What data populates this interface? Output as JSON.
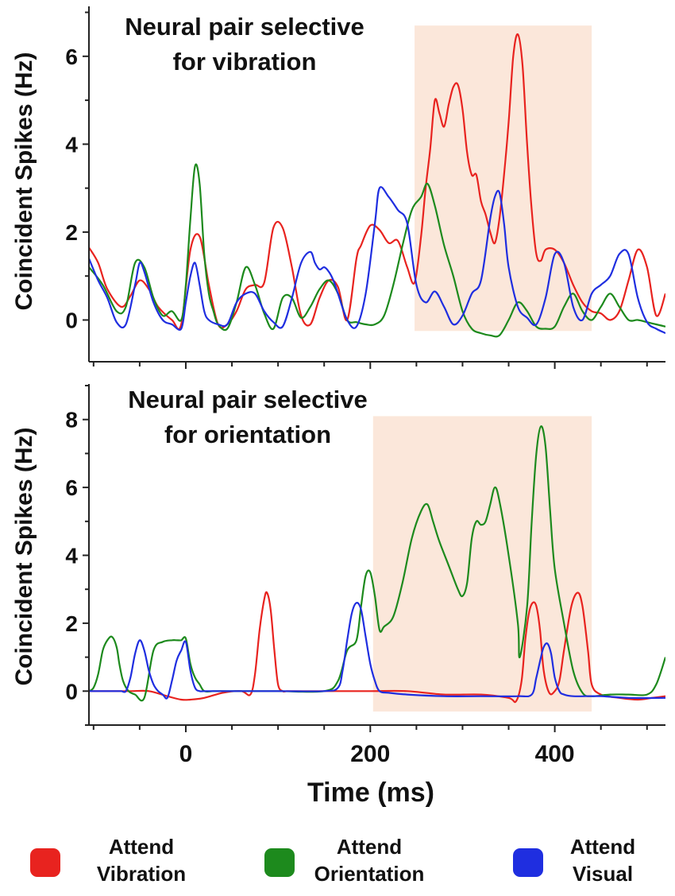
{
  "chart_data": [
    {
      "type": "line",
      "title": "Neural pair selective for vibration",
      "title_lines": [
        "Neural pair selective",
        "for vibration"
      ],
      "ylabel": "Coincident Spikes (Hz)",
      "xlim": [
        -105,
        520
      ],
      "ylim": [
        -0.95,
        7.1
      ],
      "yticks": [
        0,
        2,
        4,
        6
      ],
      "xticks": [
        0,
        200,
        400
      ],
      "highlight": {
        "x": [
          248,
          440
        ],
        "y": [
          -0.25,
          6.7
        ],
        "color": "#fbe7da"
      },
      "series": [
        {
          "name": "Attend Vibration",
          "color": "#e8231f",
          "x": [
            -105,
            -95,
            -85,
            -70,
            -60,
            -50,
            -40,
            -30,
            -15,
            -5,
            5,
            15,
            25,
            35,
            45,
            55,
            65,
            75,
            85,
            95,
            105,
            115,
            125,
            135,
            145,
            155,
            165,
            175,
            185,
            190,
            200,
            210,
            220,
            230,
            240,
            248,
            255,
            260,
            265,
            270,
            275,
            280,
            285,
            290,
            295,
            300,
            305,
            310,
            315,
            320,
            325,
            330,
            335,
            340,
            345,
            350,
            355,
            360,
            365,
            370,
            375,
            380,
            385,
            390,
            400,
            410,
            420,
            430,
            440,
            450,
            460,
            470,
            480,
            490,
            500,
            510,
            520
          ],
          "y": [
            1.65,
            1.3,
            0.7,
            0.3,
            0.55,
            0.9,
            0.7,
            0.3,
            0.0,
            -0.1,
            1.6,
            1.9,
            0.8,
            -0.1,
            -0.1,
            0.2,
            0.7,
            0.8,
            0.85,
            2.1,
            2.1,
            1.2,
            0.1,
            -0.1,
            0.5,
            0.9,
            0.75,
            0.0,
            1.4,
            1.7,
            2.15,
            2.05,
            1.75,
            1.8,
            1.2,
            0.85,
            1.9,
            3.0,
            3.9,
            5.0,
            4.7,
            4.4,
            4.9,
            5.3,
            5.35,
            4.8,
            3.8,
            3.3,
            3.3,
            2.7,
            2.4,
            2.0,
            1.75,
            2.3,
            3.3,
            4.5,
            6.0,
            6.5,
            5.8,
            4.0,
            2.5,
            1.5,
            1.35,
            1.6,
            1.6,
            1.3,
            0.8,
            0.4,
            0.2,
            0.15,
            0.0,
            0.2,
            0.9,
            1.6,
            1.2,
            0.1,
            0.6
          ]
        },
        {
          "name": "Attend Orientation",
          "color": "#1d8a1d",
          "x": [
            -105,
            -90,
            -75,
            -65,
            -55,
            -45,
            -35,
            -25,
            -15,
            -5,
            0,
            5,
            10,
            15,
            20,
            25,
            30,
            35,
            45,
            55,
            65,
            75,
            85,
            95,
            105,
            115,
            125,
            135,
            145,
            155,
            165,
            175,
            185,
            195,
            205,
            215,
            225,
            235,
            245,
            255,
            262,
            270,
            280,
            290,
            300,
            310,
            320,
            330,
            340,
            350,
            360,
            370,
            380,
            390,
            400,
            410,
            420,
            430,
            440,
            450,
            460,
            470,
            480,
            490,
            500,
            510,
            520
          ],
          "y": [
            1.2,
            0.8,
            0.2,
            0.3,
            1.3,
            1.2,
            0.5,
            0.1,
            0.2,
            0.0,
            0.8,
            2.3,
            3.5,
            3.1,
            1.5,
            0.6,
            0.2,
            -0.1,
            -0.2,
            0.4,
            1.2,
            0.8,
            0.15,
            -0.2,
            0.5,
            0.5,
            0.05,
            0.3,
            0.7,
            0.9,
            0.6,
            0.0,
            -0.05,
            -0.1,
            -0.1,
            0.1,
            0.8,
            1.7,
            2.5,
            2.8,
            3.1,
            2.6,
            1.7,
            1.0,
            0.2,
            -0.2,
            -0.3,
            -0.35,
            -0.35,
            0.0,
            0.4,
            0.2,
            -0.15,
            -0.2,
            -0.15,
            0.3,
            0.6,
            0.2,
            0.0,
            0.3,
            0.6,
            0.3,
            0.0,
            0.0,
            -0.05,
            -0.1,
            -0.15
          ]
        },
        {
          "name": "Attend Visual",
          "color": "#1f2ee0",
          "x": [
            -105,
            -95,
            -85,
            -75,
            -65,
            -55,
            -50,
            -45,
            -35,
            -25,
            -15,
            -5,
            0,
            5,
            10,
            15,
            20,
            25,
            35,
            45,
            55,
            65,
            75,
            85,
            95,
            105,
            115,
            125,
            135,
            140,
            145,
            150,
            155,
            160,
            165,
            175,
            185,
            195,
            205,
            210,
            220,
            230,
            240,
            250,
            260,
            270,
            280,
            290,
            300,
            310,
            320,
            330,
            335,
            340,
            345,
            350,
            360,
            370,
            380,
            390,
            400,
            410,
            420,
            430,
            440,
            450,
            460,
            470,
            480,
            490,
            500,
            510,
            520
          ],
          "y": [
            1.4,
            0.9,
            0.5,
            -0.05,
            -0.1,
            0.8,
            1.3,
            1.1,
            0.4,
            0.0,
            -0.1,
            -0.2,
            0.4,
            1.0,
            1.3,
            0.8,
            0.2,
            0.0,
            -0.1,
            -0.1,
            0.4,
            0.6,
            0.6,
            0.2,
            -0.05,
            -0.15,
            0.5,
            1.3,
            1.55,
            1.3,
            1.15,
            1.2,
            1.1,
            0.9,
            0.6,
            0.0,
            -0.15,
            0.6,
            2.2,
            3.0,
            2.8,
            2.5,
            2.2,
            0.8,
            0.4,
            0.65,
            0.3,
            -0.1,
            0.1,
            0.6,
            0.9,
            2.3,
            2.8,
            2.9,
            2.2,
            1.2,
            0.3,
            0.05,
            -0.1,
            0.5,
            1.5,
            1.3,
            0.3,
            0.0,
            0.6,
            0.8,
            1.0,
            1.5,
            1.5,
            0.5,
            -0.05,
            -0.2,
            -0.3
          ]
        }
      ]
    },
    {
      "type": "line",
      "title": "Neural pair selective for orientation",
      "title_lines": [
        "Neural pair selective",
        "for orientation"
      ],
      "ylabel": "Coincident Spikes (Hz)",
      "xlabel": "Time (ms)",
      "xlim": [
        -105,
        520
      ],
      "ylim": [
        -1.0,
        9.0
      ],
      "yticks": [
        0,
        2,
        4,
        6,
        8
      ],
      "xticks": [
        0,
        200,
        400
      ],
      "highlight": {
        "x": [
          203,
          440
        ],
        "y": [
          -0.6,
          8.1
        ],
        "color": "#fbe7da"
      },
      "series": [
        {
          "name": "Attend Vibration",
          "color": "#e8231f",
          "x": [
            -105,
            -80,
            -60,
            -40,
            -20,
            -5,
            5,
            20,
            40,
            60,
            70,
            75,
            80,
            85,
            88,
            92,
            96,
            100,
            105,
            110,
            120,
            140,
            160,
            200,
            240,
            280,
            320,
            350,
            358,
            364,
            368,
            372,
            376,
            380,
            384,
            388,
            394,
            400,
            405,
            410,
            418,
            425,
            430,
            436,
            440,
            450,
            470,
            490,
            505,
            520
          ],
          "y": [
            0,
            0,
            0,
            0,
            -0.15,
            -0.25,
            -0.25,
            -0.2,
            -0.05,
            0,
            -0.1,
            0.5,
            1.8,
            2.7,
            2.9,
            2.4,
            1.2,
            0.2,
            0,
            0,
            0,
            0,
            0,
            0,
            0,
            -0.1,
            -0.1,
            -0.2,
            -0.3,
            0.3,
            1.5,
            2.3,
            2.6,
            2.5,
            1.8,
            0.6,
            -0.05,
            0,
            0.3,
            1.2,
            2.5,
            2.9,
            2.5,
            1.2,
            0.2,
            -0.1,
            -0.2,
            -0.25,
            -0.2,
            -0.15
          ]
        },
        {
          "name": "Attend Orientation",
          "color": "#1d8a1d",
          "x": [
            -105,
            -100,
            -95,
            -90,
            -85,
            -80,
            -75,
            -72,
            -68,
            -62,
            -55,
            -45,
            -35,
            -25,
            -15,
            -10,
            -5,
            0,
            5,
            10,
            15,
            20,
            30,
            40,
            60,
            100,
            150,
            165,
            175,
            185,
            190,
            195,
            200,
            205,
            210,
            215,
            225,
            235,
            245,
            255,
            262,
            268,
            275,
            285,
            295,
            300,
            305,
            310,
            315,
            320,
            325,
            330,
            335,
            340,
            350,
            360,
            362,
            370,
            375,
            380,
            385,
            390,
            395,
            400,
            410,
            420,
            430,
            440,
            460,
            480,
            500,
            510,
            520
          ],
          "y": [
            0,
            0.1,
            0.5,
            1.2,
            1.5,
            1.6,
            1.3,
            0.8,
            0.3,
            0.0,
            -0.1,
            -0.2,
            1.2,
            1.45,
            1.5,
            1.5,
            1.5,
            1.55,
            0.8,
            0.4,
            0.2,
            0.0,
            0,
            0,
            0,
            0,
            0,
            0.3,
            1.2,
            1.5,
            2.5,
            3.4,
            3.5,
            2.8,
            1.8,
            1.9,
            2.2,
            3.2,
            4.5,
            5.3,
            5.5,
            5.0,
            4.4,
            3.7,
            3.0,
            2.8,
            3.2,
            4.5,
            5.0,
            4.9,
            5.0,
            5.5,
            6.0,
            5.6,
            4.0,
            2.0,
            1.0,
            2.5,
            5.0,
            7.0,
            7.8,
            7.2,
            5.3,
            3.6,
            2.0,
            0.6,
            -0.05,
            -0.15,
            -0.1,
            -0.1,
            -0.1,
            0.2,
            1.0
          ]
        },
        {
          "name": "Attend Visual",
          "color": "#1f2ee0",
          "x": [
            -105,
            -80,
            -75,
            -70,
            -65,
            -60,
            -55,
            -50,
            -45,
            -40,
            -35,
            -30,
            -25,
            -20,
            -15,
            -10,
            -5,
            0,
            5,
            10,
            15,
            20,
            40,
            100,
            150,
            165,
            170,
            175,
            180,
            185,
            190,
            195,
            200,
            205,
            210,
            220,
            240,
            280,
            320,
            360,
            375,
            380,
            385,
            388,
            392,
            396,
            400,
            405,
            410,
            420,
            450,
            480,
            520
          ],
          "y": [
            0,
            0,
            0,
            0,
            0,
            0.4,
            1.1,
            1.5,
            1.2,
            0.6,
            0.2,
            0.0,
            -0.1,
            -0.2,
            0.3,
            0.9,
            1.2,
            1.45,
            0.6,
            0.1,
            0,
            0,
            0,
            0,
            0,
            0.1,
            0.6,
            1.5,
            2.3,
            2.6,
            2.4,
            1.6,
            0.8,
            0.3,
            0,
            -0.05,
            -0.1,
            -0.15,
            -0.15,
            -0.15,
            -0.1,
            0.4,
            1.0,
            1.3,
            1.4,
            1.1,
            0.4,
            0,
            -0.1,
            -0.15,
            -0.15,
            -0.2,
            -0.2
          ]
        }
      ]
    }
  ],
  "legend": {
    "items": [
      {
        "line1": "Attend",
        "line2": "Vibration",
        "color": "#e8231f"
      },
      {
        "line1": "Attend",
        "line2": "Orientation",
        "color": "#1d8a1d"
      },
      {
        "line1": "Attend",
        "line2": "Visual",
        "color": "#1f2ee0"
      }
    ]
  }
}
